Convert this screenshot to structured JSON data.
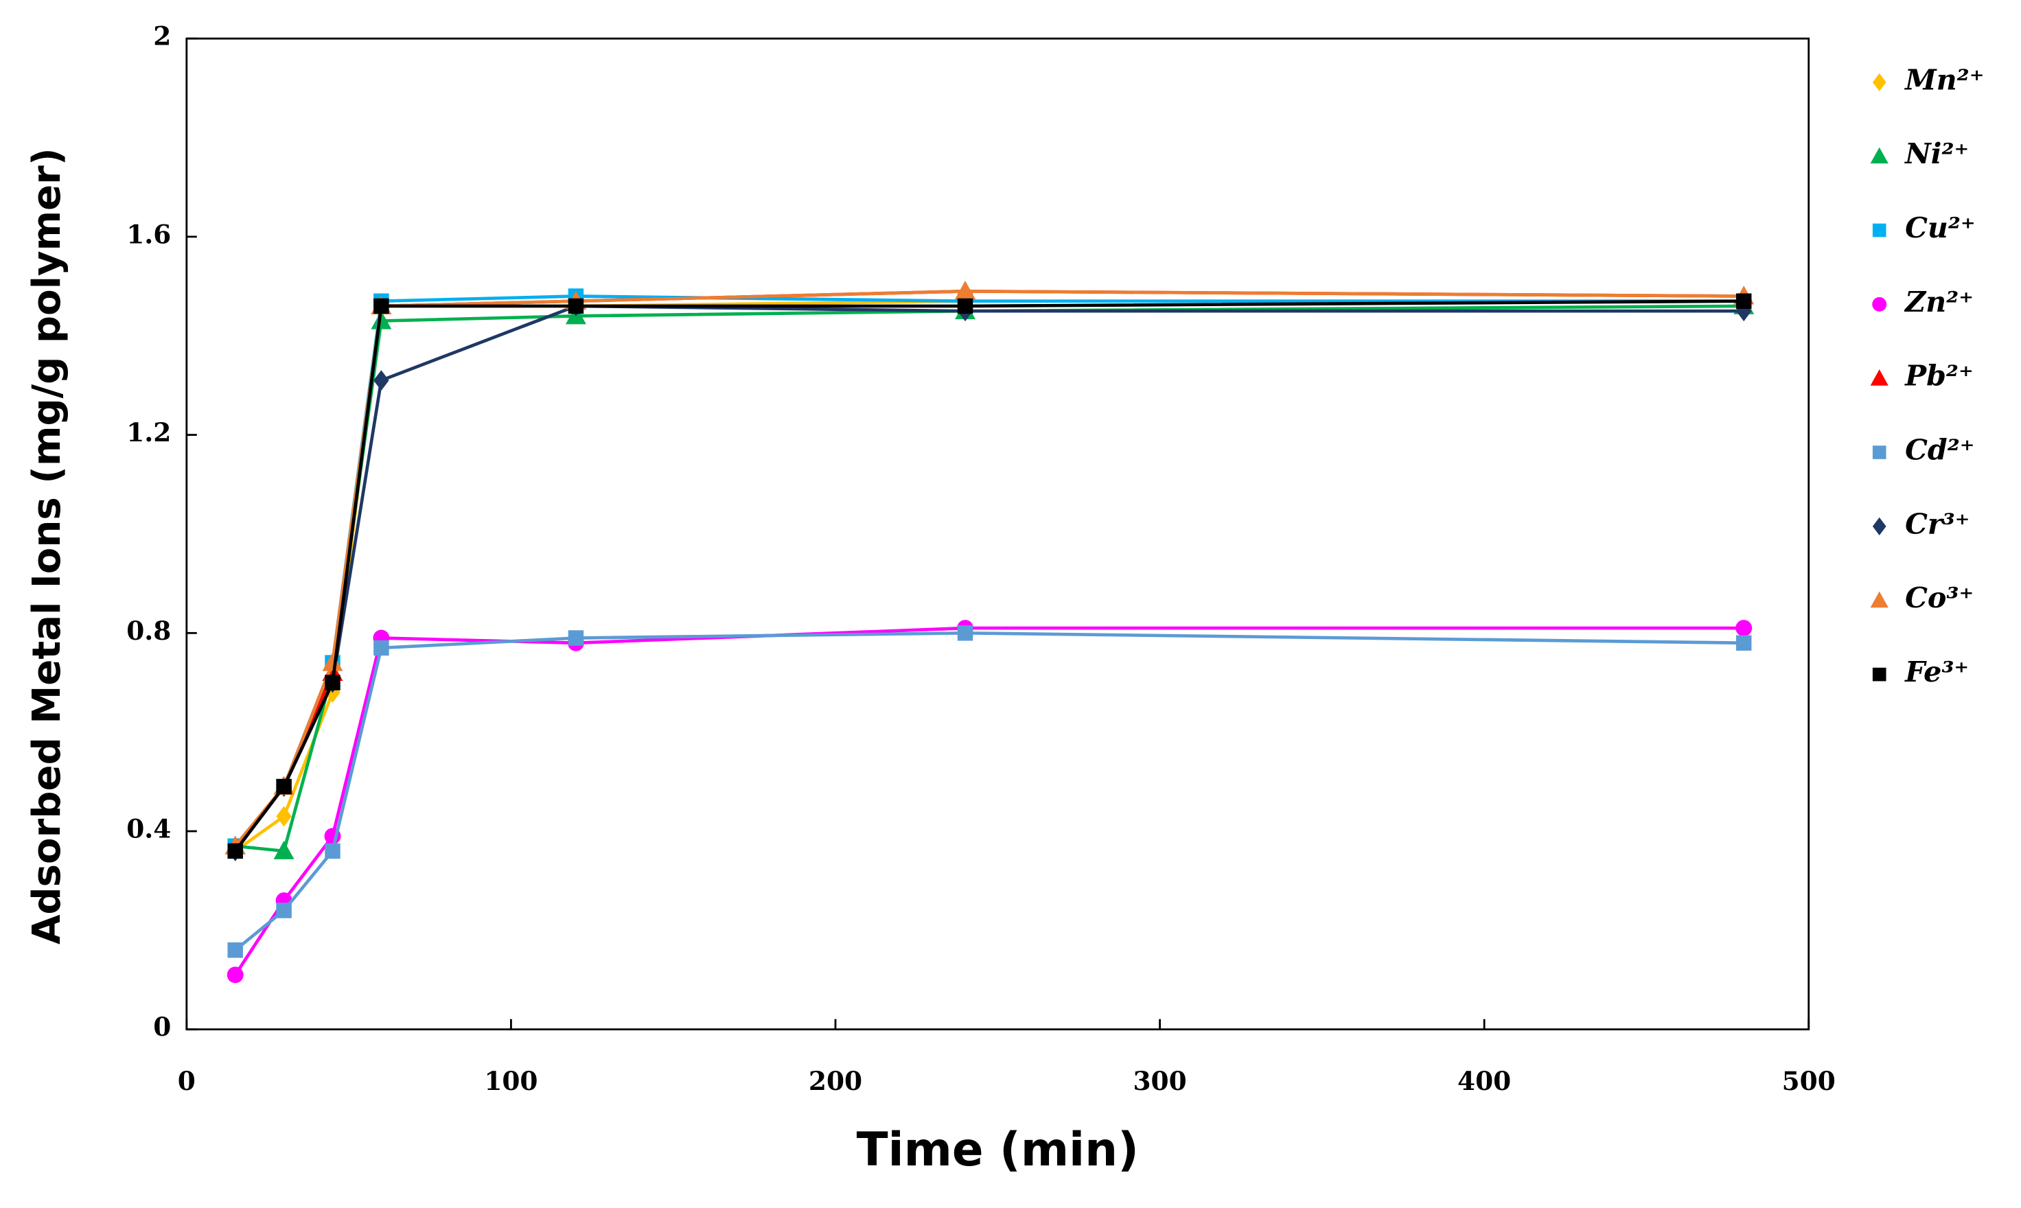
{
  "chart_data": {
    "type": "scatter",
    "x_label": "Time (min)",
    "y_label": "Adsorbed Metal Ions (mg/g polymer)",
    "x": [
      15,
      30,
      45,
      60,
      120,
      240,
      480
    ],
    "xlim": [
      0,
      500
    ],
    "xticks": [
      0,
      100,
      200,
      300,
      400,
      500
    ],
    "ylim": [
      0,
      2
    ],
    "yticks": [
      0,
      0.4,
      0.8,
      1.2,
      1.6,
      2
    ],
    "series": [
      {
        "name": "Mn²⁺",
        "color": "#ffc000",
        "marker": "diamond",
        "values": [
          0.36,
          0.43,
          0.68,
          1.46,
          1.46,
          1.47,
          1.47
        ]
      },
      {
        "name": "Ni²⁺",
        "color": "#00b050",
        "marker": "triangle",
        "values": [
          0.37,
          0.36,
          0.72,
          1.43,
          1.44,
          1.45,
          1.46
        ]
      },
      {
        "name": "Cu²⁺",
        "color": "#00b0f0",
        "marker": "square",
        "values": [
          0.37,
          0.49,
          0.74,
          1.47,
          1.48,
          1.47,
          1.47
        ]
      },
      {
        "name": "Zn²⁺",
        "color": "#ff00ff",
        "marker": "circle",
        "values": [
          0.11,
          0.26,
          0.39,
          0.79,
          0.78,
          0.81,
          0.81
        ]
      },
      {
        "name": "Pb²⁺",
        "color": "#ff0000",
        "marker": "triangle",
        "values": [
          0.37,
          0.49,
          0.72,
          1.46,
          1.47,
          1.49,
          1.48
        ]
      },
      {
        "name": "Cd²⁺",
        "color": "#5b9bd5",
        "marker": "square",
        "values": [
          0.16,
          0.24,
          0.36,
          0.77,
          0.79,
          0.8,
          0.78
        ]
      },
      {
        "name": "Cr³⁺",
        "color": "#1f3864",
        "marker": "diamond",
        "values": [
          0.36,
          0.49,
          0.7,
          1.31,
          1.46,
          1.45,
          1.45
        ]
      },
      {
        "name": "Co³⁺",
        "color": "#ed7d31",
        "marker": "triangle",
        "values": [
          0.37,
          0.49,
          0.74,
          1.46,
          1.47,
          1.49,
          1.48
        ]
      },
      {
        "name": "Fe³⁺",
        "color": "#000000",
        "marker": "square",
        "values": [
          0.36,
          0.49,
          0.7,
          1.46,
          1.46,
          1.46,
          1.47
        ]
      }
    ]
  }
}
